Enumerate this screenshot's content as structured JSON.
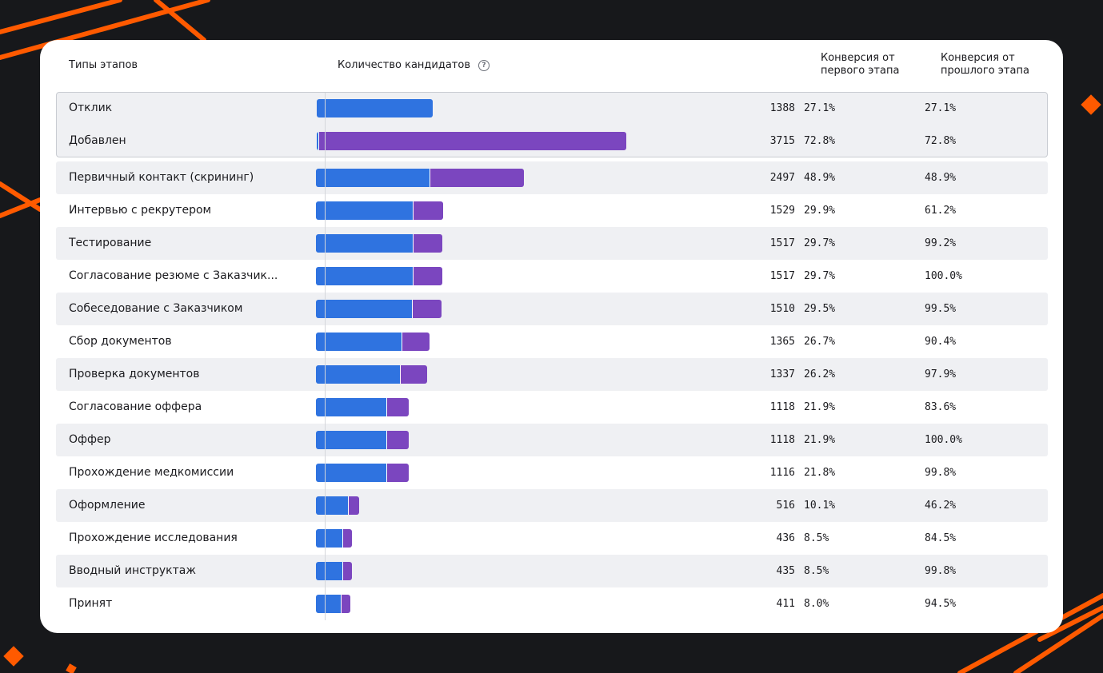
{
  "headers": {
    "stage": "Типы этапов",
    "count": "Количество кандидатов",
    "conv_first": "Конверсия от первого этапа",
    "conv_prev": "Конверсия от прошлого этапа"
  },
  "colors": {
    "blue": "#2f73e0",
    "purple": "#7b46bf",
    "accent_orange": "#ff5a00",
    "background": "#17181b"
  },
  "chart_data": {
    "type": "bar",
    "orientation": "horizontal",
    "stacked": true,
    "xlim": [
      0,
      3715
    ],
    "categories": [
      "Отклик",
      "Добавлен",
      "Первичный контакт (скрининг)",
      "Интервью с рекрутером",
      "Тестирование",
      "Согласование резюме с Заказчик...",
      "Собеседование с Заказчиком",
      "Сбор документов",
      "Проверка документов",
      "Согласование оффера",
      "Оффер",
      "Прохождение медкомиссии",
      "Оформление",
      "Прохождение исследования",
      "Вводный инструктаж",
      "Принят"
    ],
    "totals": [
      1388,
      3715,
      2497,
      1529,
      1517,
      1517,
      1510,
      1365,
      1337,
      1118,
      1118,
      1116,
      516,
      436,
      435,
      411
    ],
    "series": [
      {
        "values": [
          1388,
          15,
          1360,
          1160,
          1157,
          1157,
          1150,
          1030,
          1010,
          845,
          845,
          840,
          385,
          315,
          315,
          300
        ]
      },
      {
        "values": [
          0,
          3700,
          1137,
          369,
          360,
          360,
          360,
          335,
          327,
          273,
          273,
          276,
          131,
          121,
          120,
          111
        ]
      }
    ],
    "conv_first": [
      "27.1%",
      "72.8%",
      "48.9%",
      "29.9%",
      "29.7%",
      "29.7%",
      "29.5%",
      "26.7%",
      "26.2%",
      "21.9%",
      "21.9%",
      "21.8%",
      "10.1%",
      "8.5%",
      "8.5%",
      "8.0%"
    ],
    "conv_prev": [
      "27.1%",
      "72.8%",
      "48.9%",
      "61.2%",
      "99.2%",
      "100.0%",
      "99.5%",
      "90.4%",
      "97.9%",
      "83.6%",
      "100.0%",
      "99.8%",
      "46.2%",
      "84.5%",
      "99.8%",
      "94.5%"
    ],
    "grouped_rows": [
      0,
      1
    ]
  }
}
